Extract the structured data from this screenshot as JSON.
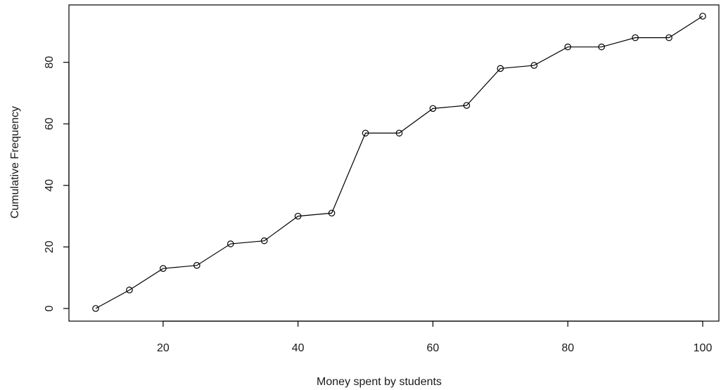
{
  "chart_data": {
    "type": "line",
    "title": "",
    "xlabel": "Money spent by students",
    "ylabel": "Cumulative Frequency",
    "xlim": [
      10,
      100
    ],
    "ylim": [
      0,
      95
    ],
    "x_ticks": [
      20,
      40,
      60,
      80,
      100
    ],
    "y_ticks": [
      0,
      20,
      40,
      60,
      80
    ],
    "grid": false,
    "legend": "none",
    "markers": "open-circle",
    "line_color": "#000000",
    "x": [
      10,
      15,
      20,
      25,
      30,
      35,
      40,
      45,
      50,
      55,
      60,
      65,
      70,
      75,
      80,
      85,
      90,
      95,
      100
    ],
    "series": [
      {
        "values": [
          0,
          6,
          13,
          14,
          21,
          22,
          30,
          31,
          57,
          57,
          65,
          66,
          78,
          79,
          85,
          85,
          88,
          88,
          95
        ]
      }
    ]
  }
}
